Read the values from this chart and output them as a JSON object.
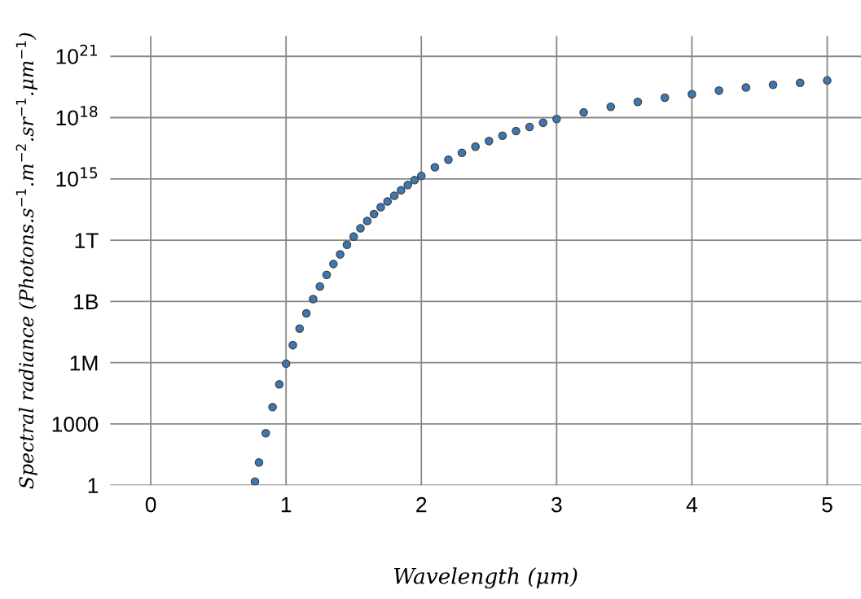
{
  "chart_data": {
    "type": "scatter",
    "xlabel": "Wavelength (μm)",
    "ylabel": "Spectral radiance (Photons.s$^{−1}$.m$^{−2}$.sr$^{−1}$.μm$^{−1}$)",
    "x": [
      0.77,
      0.8,
      0.85,
      0.9,
      0.95,
      1.0,
      1.05,
      1.1,
      1.15,
      1.2,
      1.25,
      1.3,
      1.35,
      1.4,
      1.45,
      1.5,
      1.55,
      1.6,
      1.65,
      1.7,
      1.75,
      1.8,
      1.85,
      1.9,
      1.95,
      2.0,
      2.1,
      2.2,
      2.3,
      2.4,
      2.5,
      2.6,
      2.7,
      2.8,
      2.9,
      3.0,
      3.2,
      3.4,
      3.6,
      3.8,
      4.0,
      4.2,
      4.4,
      4.6,
      4.8,
      5.0
    ],
    "series": [
      {
        "color": "#3a78b5",
        "values": [
          1.5,
          13,
          350,
          6600,
          87000.0,
          890000.0,
          7200000.0,
          47000000.0,
          260000000.0,
          1300000000.0,
          5400000000.0,
          20000000000.0,
          68000000000.0,
          200000000000.0,
          590000000000.0,
          1500000000000.0,
          3800000000000.0,
          8700000000000.0,
          19000000000000.0,
          41000000000000.0,
          79000000000000.0,
          150000000000000.0,
          280000000000000.0,
          500000000000000.0,
          870000000000000.0,
          1400000000000000.0,
          3700000000000000.0,
          8700000000000000.0,
          1.9e+16,
          3.8e+16,
          7.1e+16,
          1.3e+17,
          2.2e+17,
          3.5e+17,
          5.6e+17,
          8.5e+17,
          1.8e+18,
          3.4e+18,
          5.9e+18,
          9.5e+18,
          1.4e+19,
          2.1e+19,
          3e+19,
          4e+19,
          5.1e+19,
          6.6e+19
        ]
      }
    ],
    "log": "y",
    "xlim": [
      -0.3,
      5.25
    ],
    "ylim": [
      1,
      1e+22
    ],
    "xticks": [
      0,
      1,
      2,
      3,
      4,
      5
    ],
    "yticks": [
      1,
      1000,
      {
        "value": 1000000.0,
        "label": "1M"
      },
      {
        "value": 1000000000.0,
        "label": "1B"
      },
      {
        "value": 1000000000000.0,
        "label": "1T"
      },
      {
        "value": 1000000000000000.0,
        "label": "10$^{15}$"
      },
      {
        "value": 1e+18,
        "label": "10$^{18}$"
      },
      {
        "value": 1e+21,
        "label": "10$^{21}$"
      }
    ],
    "grid": true,
    "marker": "circle"
  }
}
